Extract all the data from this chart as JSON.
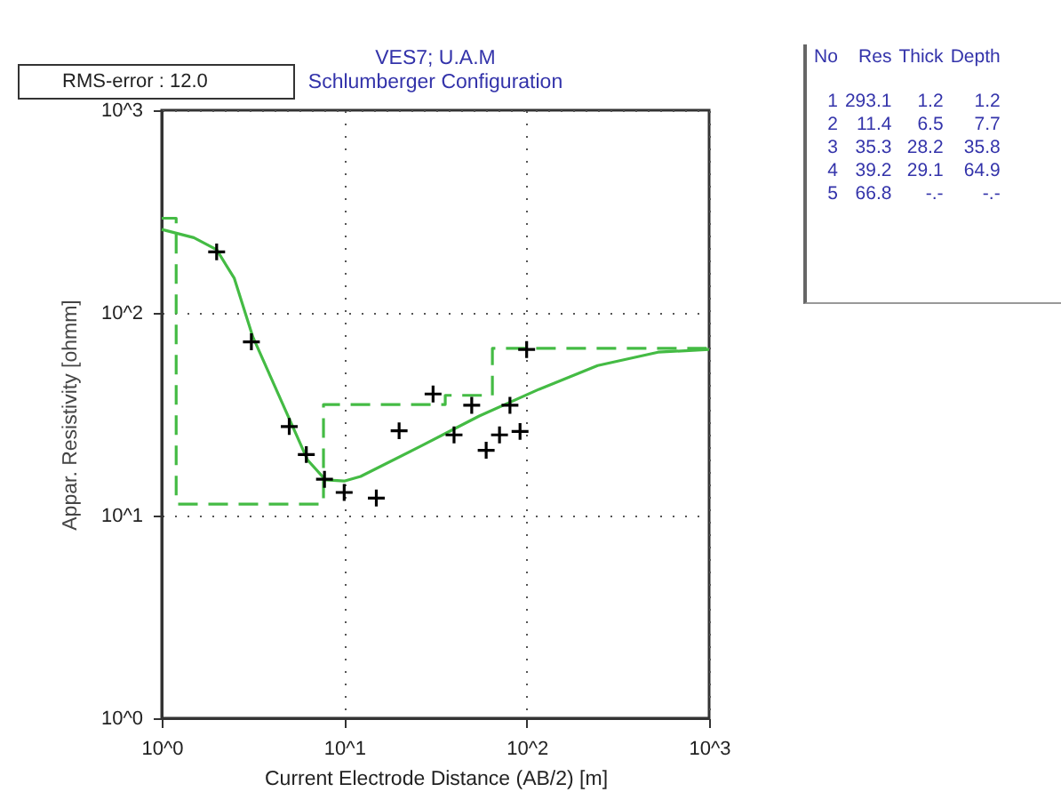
{
  "chart_data": {
    "type": "scatter",
    "title": "VES7; U.A.M",
    "subtitle": "Schlumberger Configuration",
    "xlabel": "Current Electrode Distance (AB/2) [m]",
    "ylabel": "Appar. Resistivity [ohmm]",
    "log": "xy",
    "xlim": [
      1,
      1000
    ],
    "ylim": [
      1,
      1000
    ],
    "xticks": [
      {
        "value": 1,
        "label": "10^0"
      },
      {
        "value": 10,
        "label": "10^1"
      },
      {
        "value": 100,
        "label": "10^2"
      },
      {
        "value": 1000,
        "label": "10^3"
      }
    ],
    "yticks": [
      {
        "value": 1,
        "label": "10^0"
      },
      {
        "value": 10,
        "label": "10^1"
      },
      {
        "value": 100,
        "label": "10^2"
      },
      {
        "value": 1000,
        "label": "10^3"
      }
    ],
    "grid": true,
    "series": [
      {
        "color": "#000000",
        "marker": "cross",
        "x": [
          2,
          3.1,
          5,
          6.2,
          7.8,
          10,
          15,
          20,
          30.7,
          40,
          50,
          60,
          71,
          81,
          92,
          100
        ],
        "values": [
          200,
          72,
          27.5,
          20,
          15.1,
          13,
          12.2,
          26.2,
          39.8,
          25,
          35,
          21,
          25,
          35,
          26,
          66
        ]
      },
      {
        "type": "line",
        "color": "#44bb44",
        "marker": "none",
        "line_style": "solid",
        "x": [
          1,
          1.5,
          2,
          2.5,
          3.16,
          5,
          6.3,
          7.9,
          10,
          12.3,
          26.3,
          55,
          117,
          245,
          525,
          1000
        ],
        "values": [
          258,
          235,
          205,
          148,
          76,
          30,
          18.8,
          15,
          14.8,
          15.6,
          22,
          31,
          42,
          55,
          64,
          66
        ]
      },
      {
        "type": "step",
        "color": "#44bb44",
        "marker": "none",
        "line_style": "dashed",
        "x": [
          1,
          1.2,
          7.7,
          35.8,
          64.9,
          1000
        ],
        "values": [
          293.1,
          11.4,
          35.3,
          39.2,
          66.8,
          66.8
        ]
      }
    ],
    "annotations": [
      "RMS-error : 12.0",
      "No Res Thick Depth",
      "1 293.1 1.2 1.2",
      "2 11.4 6.5 7.7",
      "3 35.3 28.2 35.8",
      "4 39.2 29.1 64.9",
      "5 66.8 -.- -.-"
    ]
  }
}
